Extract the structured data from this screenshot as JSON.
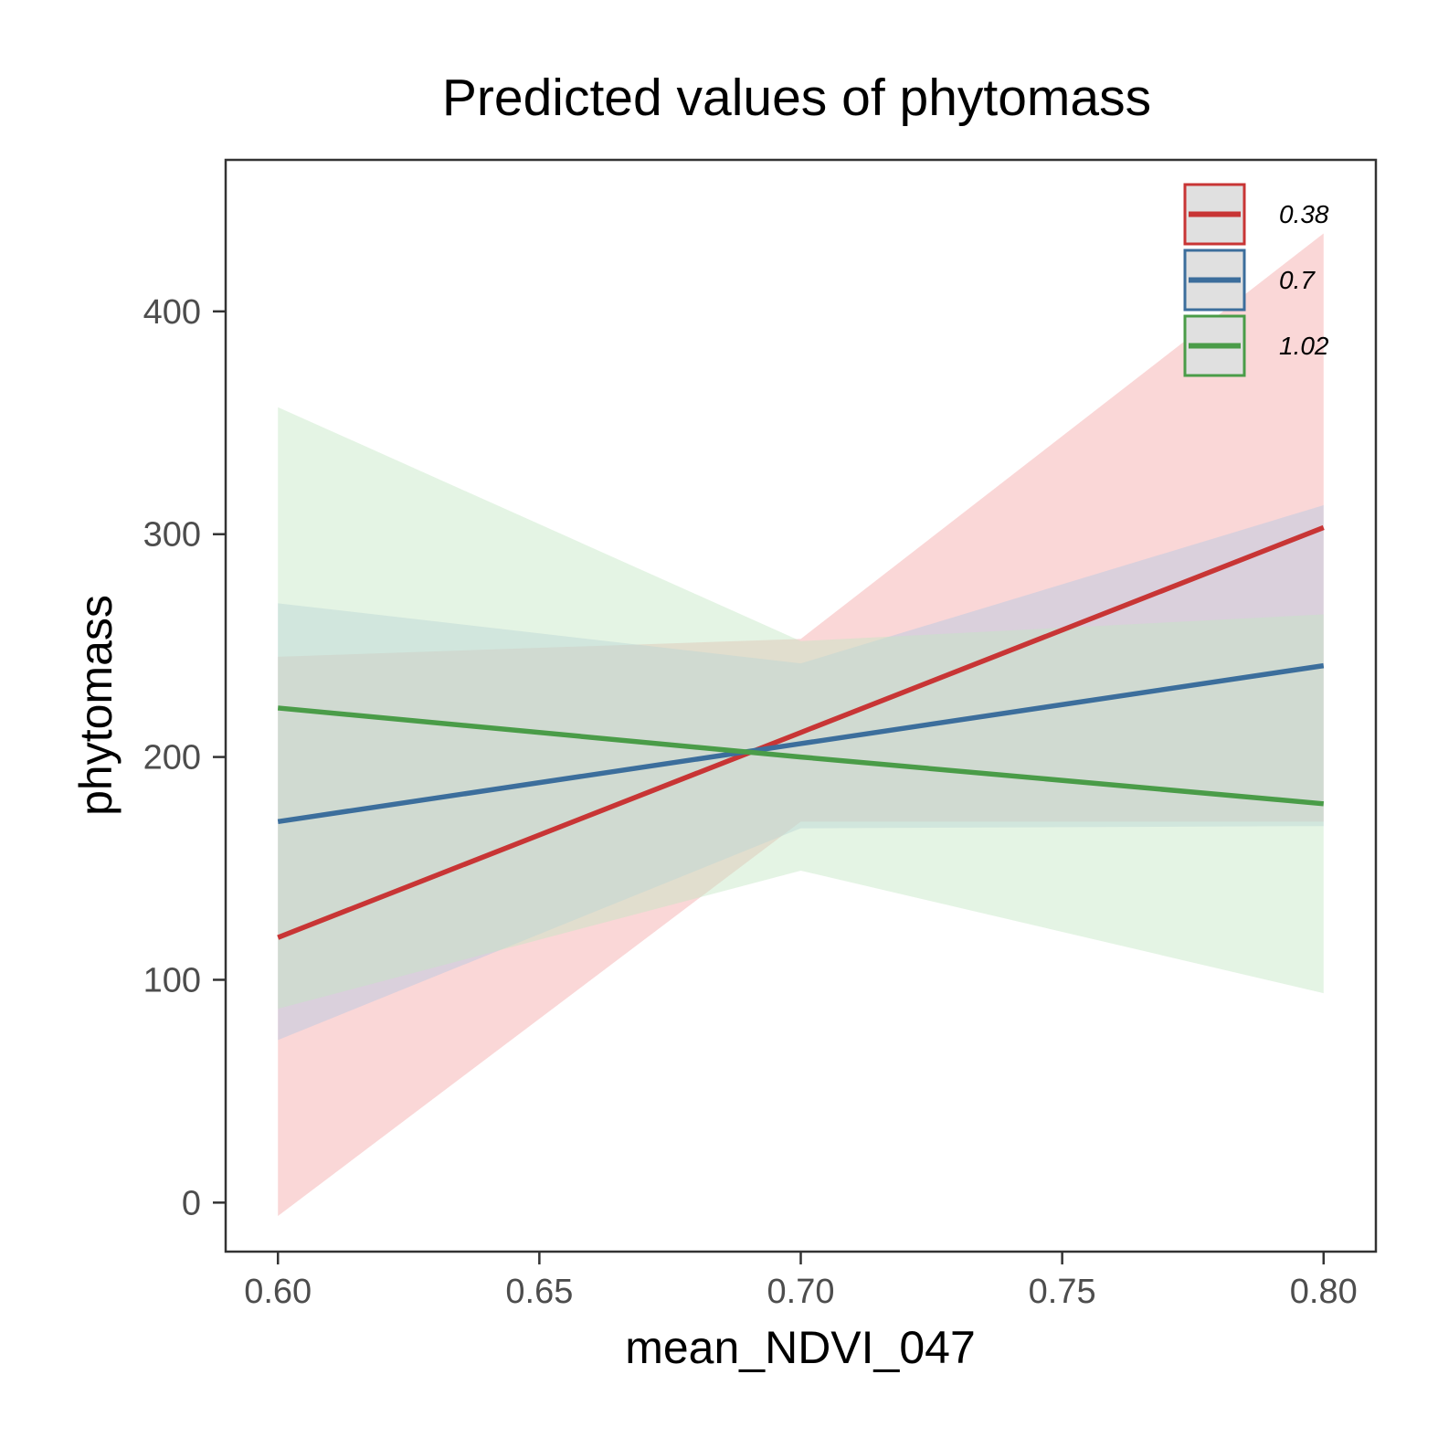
{
  "chart_data": {
    "type": "line",
    "title": "Predicted values of phytomass",
    "xlabel": "mean_NDVI_047",
    "ylabel": "phytomass",
    "xlim": [
      0.59,
      0.81
    ],
    "ylim": [
      -22,
      468
    ],
    "x_ticks": [
      0.6,
      0.65,
      0.7,
      0.75,
      0.8
    ],
    "x_tick_labels": [
      "0.60",
      "0.65",
      "0.70",
      "0.75",
      "0.80"
    ],
    "y_ticks": [
      0,
      100,
      200,
      300,
      400
    ],
    "y_tick_labels": [
      "0",
      "100",
      "200",
      "300",
      "400"
    ],
    "grid": false,
    "legend_position": "top-right",
    "series": [
      {
        "name": "0.38",
        "color": "#c83535",
        "band_color": "#f4a6a6",
        "x": [
          0.6,
          0.7,
          0.8
        ],
        "y": [
          119,
          211,
          303
        ],
        "ci_low": [
          -6,
          171,
          171
        ],
        "ci_high": [
          245,
          253,
          435
        ]
      },
      {
        "name": "0.7",
        "color": "#3c6e9c",
        "band_color": "#b3c7e2",
        "x": [
          0.6,
          0.7,
          0.8
        ],
        "y": [
          171,
          206,
          241
        ],
        "ci_low": [
          73,
          168,
          169
        ],
        "ci_high": [
          269,
          242,
          313
        ]
      },
      {
        "name": "1.02",
        "color": "#4a9c48",
        "band_color": "#c4e6c4",
        "x": [
          0.6,
          0.7,
          0.8
        ],
        "y": [
          222,
          200,
          179
        ],
        "ci_low": [
          87,
          149,
          94
        ],
        "ci_high": [
          357,
          252,
          264
        ]
      }
    ]
  }
}
